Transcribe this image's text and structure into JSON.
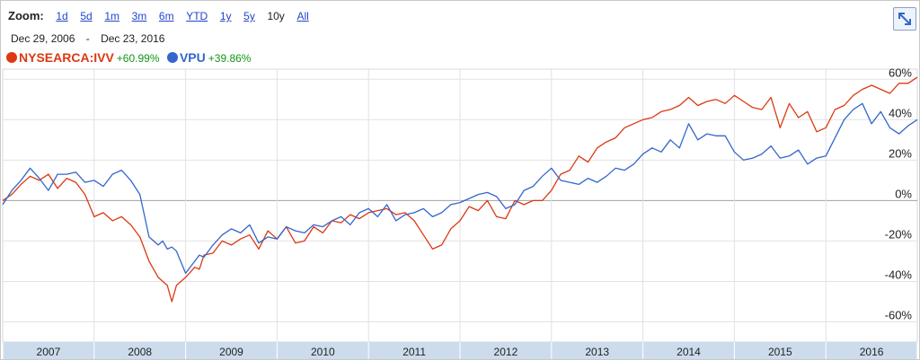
{
  "zoom": {
    "label": "Zoom:",
    "options": [
      "1d",
      "5d",
      "1m",
      "3m",
      "6m",
      "YTD",
      "1y",
      "5y",
      "10y",
      "All"
    ],
    "active": "10y"
  },
  "date_range": {
    "start": "Dec 29, 2006",
    "separator": "-",
    "end": "Dec 23, 2016"
  },
  "legend": [
    {
      "name": "NYSEARCA:IVV",
      "change": "+60.99%",
      "color": "#dc3912",
      "change_color": "#109618"
    },
    {
      "name": "VPU",
      "change": "+39.86%",
      "color": "#3366cc",
      "change_color": "#109618"
    }
  ],
  "icons": {
    "expand": "expand-icon"
  },
  "chart_data": {
    "type": "line",
    "title": "",
    "xlabel": "",
    "ylabel": "",
    "x_labels": [
      "2007",
      "2008",
      "2009",
      "2010",
      "2011",
      "2012",
      "2013",
      "2014",
      "2015",
      "2016"
    ],
    "y_ticks": [
      "60%",
      "40%",
      "20%",
      "0%",
      "-20%",
      "-40%",
      "-60%"
    ],
    "ylim": [
      -70,
      65
    ],
    "xlim": [
      2007.0,
      2017.0
    ],
    "grid": true,
    "series": [
      {
        "name": "NYSEARCA:IVV",
        "color": "#dc3912",
        "x": [
          2007.0,
          2007.1,
          2007.2,
          2007.3,
          2007.4,
          2007.5,
          2007.6,
          2007.7,
          2007.8,
          2007.9,
          2008.0,
          2008.1,
          2008.2,
          2008.3,
          2008.4,
          2008.5,
          2008.6,
          2008.7,
          2008.75,
          2008.8,
          2008.85,
          2008.9,
          2009.0,
          2009.1,
          2009.15,
          2009.2,
          2009.3,
          2009.4,
          2009.5,
          2009.6,
          2009.7,
          2009.8,
          2009.9,
          2010.0,
          2010.1,
          2010.2,
          2010.3,
          2010.4,
          2010.5,
          2010.6,
          2010.7,
          2010.8,
          2010.9,
          2011.0,
          2011.1,
          2011.2,
          2011.3,
          2011.4,
          2011.5,
          2011.6,
          2011.7,
          2011.8,
          2011.9,
          2012.0,
          2012.1,
          2012.2,
          2012.3,
          2012.4,
          2012.5,
          2012.6,
          2012.7,
          2012.8,
          2012.9,
          2013.0,
          2013.1,
          2013.2,
          2013.3,
          2013.4,
          2013.5,
          2013.6,
          2013.7,
          2013.8,
          2013.9,
          2014.0,
          2014.1,
          2014.2,
          2014.3,
          2014.4,
          2014.5,
          2014.6,
          2014.7,
          2014.8,
          2014.9,
          2015.0,
          2015.1,
          2015.2,
          2015.3,
          2015.4,
          2015.5,
          2015.6,
          2015.7,
          2015.8,
          2015.9,
          2016.0,
          2016.1,
          2016.2,
          2016.3,
          2016.4,
          2016.5,
          2016.6,
          2016.7,
          2016.8,
          2016.9,
          2017.0
        ],
        "values": [
          0,
          3,
          8,
          12,
          10,
          13,
          6,
          11,
          9,
          3,
          -8,
          -6,
          -10,
          -8,
          -12,
          -18,
          -30,
          -38,
          -40,
          -42,
          -50,
          -42,
          -38,
          -33,
          -34,
          -27,
          -26,
          -20,
          -22,
          -19,
          -17,
          -24,
          -15,
          -19,
          -13,
          -21,
          -20,
          -13,
          -16,
          -10,
          -11,
          -7,
          -9,
          -6,
          -5,
          -4,
          -7,
          -6,
          -10,
          -17,
          -24,
          -22,
          -14,
          -10,
          -3,
          -5,
          0,
          -8,
          -9,
          0,
          -2,
          0,
          0,
          5,
          13,
          15,
          22,
          19,
          26,
          29,
          31,
          36,
          38,
          40,
          41,
          44,
          45,
          47,
          51,
          47,
          49,
          50,
          48,
          52,
          49,
          46,
          45,
          51,
          36,
          48,
          41,
          44,
          34,
          36,
          45,
          47,
          52,
          55,
          57,
          55,
          53,
          58,
          58,
          61
        ]
      },
      {
        "name": "VPU",
        "color": "#3366cc",
        "x": [
          2007.0,
          2007.1,
          2007.2,
          2007.3,
          2007.4,
          2007.5,
          2007.6,
          2007.7,
          2007.8,
          2007.9,
          2008.0,
          2008.1,
          2008.2,
          2008.3,
          2008.4,
          2008.5,
          2008.6,
          2008.7,
          2008.75,
          2008.8,
          2008.85,
          2008.9,
          2009.0,
          2009.1,
          2009.15,
          2009.2,
          2009.3,
          2009.4,
          2009.5,
          2009.6,
          2009.7,
          2009.8,
          2009.9,
          2010.0,
          2010.1,
          2010.2,
          2010.3,
          2010.4,
          2010.5,
          2010.6,
          2010.7,
          2010.8,
          2010.9,
          2011.0,
          2011.1,
          2011.2,
          2011.3,
          2011.4,
          2011.5,
          2011.6,
          2011.7,
          2011.8,
          2011.9,
          2012.0,
          2012.1,
          2012.2,
          2012.3,
          2012.4,
          2012.5,
          2012.6,
          2012.7,
          2012.8,
          2012.9,
          2013.0,
          2013.1,
          2013.2,
          2013.3,
          2013.4,
          2013.5,
          2013.6,
          2013.7,
          2013.8,
          2013.9,
          2014.0,
          2014.1,
          2014.2,
          2014.3,
          2014.4,
          2014.5,
          2014.6,
          2014.7,
          2014.8,
          2014.9,
          2015.0,
          2015.1,
          2015.2,
          2015.3,
          2015.4,
          2015.5,
          2015.6,
          2015.7,
          2015.8,
          2015.9,
          2016.0,
          2016.1,
          2016.2,
          2016.3,
          2016.4,
          2016.5,
          2016.6,
          2016.7,
          2016.8,
          2016.9,
          2017.0
        ],
        "values": [
          -2,
          5,
          10,
          16,
          11,
          5,
          13,
          13,
          14,
          9,
          10,
          7,
          13,
          15,
          10,
          3,
          -18,
          -22,
          -20,
          -24,
          -23,
          -25,
          -36,
          -30,
          -27,
          -28,
          -22,
          -17,
          -14,
          -16,
          -12,
          -21,
          -18,
          -19,
          -13,
          -15,
          -16,
          -12,
          -13,
          -10,
          -8,
          -12,
          -6,
          -4,
          -8,
          -2,
          -10,
          -7,
          -6,
          -4,
          -8,
          -6,
          -2,
          -1,
          1,
          3,
          4,
          2,
          -4,
          -2,
          5,
          7,
          12,
          16,
          10,
          9,
          8,
          11,
          9,
          12,
          16,
          15,
          18,
          23,
          26,
          24,
          30,
          26,
          38,
          30,
          33,
          32,
          32,
          24,
          20,
          21,
          23,
          27,
          21,
          22,
          25,
          18,
          21,
          22,
          31,
          40,
          45,
          48,
          38,
          44,
          36,
          33,
          37,
          40
        ]
      }
    ]
  }
}
